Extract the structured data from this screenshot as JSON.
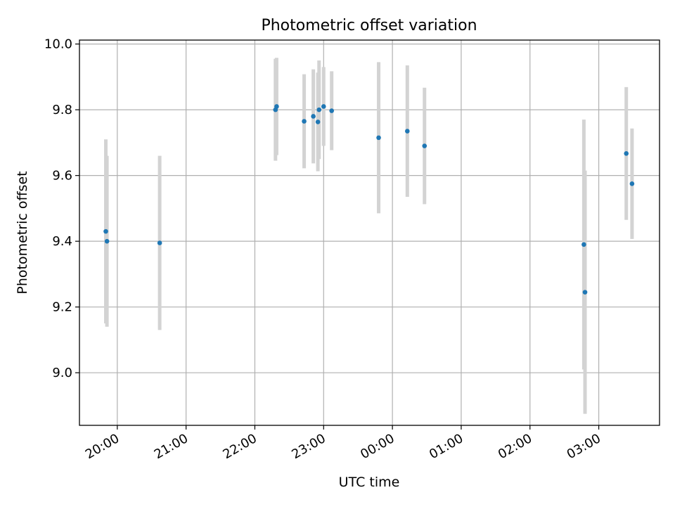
{
  "chart_data": {
    "type": "scatter",
    "title": "Photometric offset variation",
    "xlabel": "UTC time",
    "ylabel": "Photometric offset",
    "x_tick_labels": [
      "20:00",
      "21:00",
      "22:00",
      "23:00",
      "00:00",
      "01:00",
      "02:00",
      "03:00"
    ],
    "x_ticks": [
      "20:00",
      "21:00",
      "22:00",
      "23:00",
      "00:00",
      "01:00",
      "02:00",
      "03:00"
    ],
    "y_ticks": [
      9.0,
      9.2,
      9.4,
      9.6,
      9.8,
      10.0
    ],
    "y_tick_labels": [
      "9.0",
      "9.2",
      "9.4",
      "9.6",
      "9.8",
      "10.0"
    ],
    "xlim": [
      "19:27",
      "27:53"
    ],
    "ylim": [
      8.84,
      10.012
    ],
    "grid": true,
    "legend": "none",
    "colors": {
      "point": "#1f77b4",
      "errorbar": "#d3d3d3",
      "grid": "#b0b0b0"
    },
    "points": [
      {
        "x": "19:50",
        "y": 9.43,
        "yerr": 0.28
      },
      {
        "x": "19:51",
        "y": 9.4,
        "yerr": 0.26
      },
      {
        "x": "20:37",
        "y": 9.395,
        "yerr": 0.265
      },
      {
        "x": "22:18",
        "y": 9.8,
        "yerr": 0.155
      },
      {
        "x": "22:19",
        "y": 9.81,
        "yerr": 0.148
      },
      {
        "x": "22:43",
        "y": 9.765,
        "yerr": 0.143
      },
      {
        "x": "22:51",
        "y": 9.78,
        "yerr": 0.143
      },
      {
        "x": "22:55",
        "y": 9.763,
        "yerr": 0.15
      },
      {
        "x": "22:56",
        "y": 9.8,
        "yerr": 0.15
      },
      {
        "x": "23:00",
        "y": 9.81,
        "yerr": 0.12
      },
      {
        "x": "23:07",
        "y": 9.797,
        "yerr": 0.12
      },
      {
        "x": "23:48",
        "y": 9.715,
        "yerr": 0.23
      },
      {
        "x": "00:13",
        "y": 9.735,
        "yerr": 0.2
      },
      {
        "x": "00:28",
        "y": 9.69,
        "yerr": 0.177
      },
      {
        "x": "02:47",
        "y": 9.39,
        "yerr": 0.38
      },
      {
        "x": "02:48",
        "y": 9.245,
        "yerr": 0.37
      },
      {
        "x": "03:24",
        "y": 9.667,
        "yerr": 0.202
      },
      {
        "x": "03:29",
        "y": 9.575,
        "yerr": 0.168
      }
    ]
  }
}
